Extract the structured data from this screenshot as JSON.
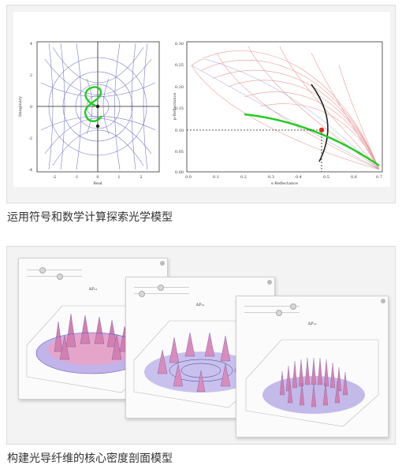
{
  "card1": {
    "caption": "运用符号和数学计算探索光学模型",
    "left_plot": {
      "ylabel": "Imaginary",
      "xlabel": "Real",
      "x_ticks": [
        "-2",
        "-1",
        "0",
        "1",
        "2"
      ],
      "y_ticks": [
        "4",
        "2",
        "0",
        "-2",
        "-4"
      ]
    },
    "right_plot": {
      "ylabel": "p-Reflectance",
      "xlabel": "s-Reflectance",
      "x_ticks": [
        "0.0",
        "0.1",
        "0.2",
        "0.3",
        "0.4",
        "0.5",
        "0.6",
        "0.7"
      ],
      "y_ticks": [
        "0.30",
        "0.25",
        "0.20",
        "0.15",
        "0.10",
        "0.05",
        "0.00"
      ]
    }
  },
  "card2": {
    "caption": "构建光导纤维的核心密度剖面模型",
    "windows": [
      {
        "title": "ΔP₁₁"
      },
      {
        "title": "ΔP₁₁"
      },
      {
        "title": "ΔP₁₁"
      }
    ]
  },
  "colors": {
    "green_curve": "#22cc22",
    "grid_blue": "#7070c0",
    "grid_red": "#e08080",
    "marker": "#e03020"
  }
}
